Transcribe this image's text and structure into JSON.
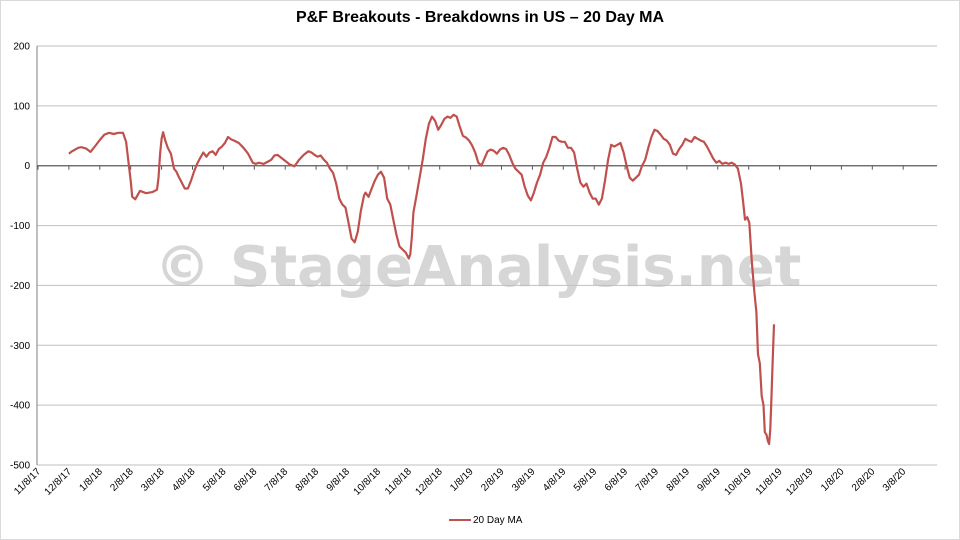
{
  "chart_data": {
    "type": "line",
    "title": "P&F Breakouts - Breakdowns in US – 20 Day MA",
    "watermark": "© StageAnalysis.net",
    "y_ticks": [
      200,
      100,
      0,
      -100,
      -200,
      -300,
      -400,
      -500
    ],
    "ylim": [
      -500,
      200
    ],
    "x_tick_labels": [
      "11/8/17",
      "12/8/17",
      "1/8/18",
      "2/8/18",
      "3/8/18",
      "4/8/18",
      "5/8/18",
      "6/8/18",
      "7/8/18",
      "8/8/18",
      "9/8/18",
      "10/8/18",
      "11/8/18",
      "12/8/18",
      "1/8/19",
      "2/8/19",
      "3/8/19",
      "4/8/19",
      "5/8/19",
      "6/8/19",
      "7/8/19",
      "8/8/19",
      "9/8/19",
      "10/8/19",
      "11/8/19",
      "12/8/19",
      "1/8/20",
      "2/8/20",
      "3/8/20"
    ],
    "grid": "horizontal",
    "legend_position": "bottom",
    "line_color": "#C0504D",
    "series": [
      {
        "name": "20 Day MA",
        "points": [
          [
            1.0,
            20
          ],
          [
            1.1,
            24
          ],
          [
            1.2,
            27
          ],
          [
            1.3,
            30
          ],
          [
            1.4,
            31
          ],
          [
            1.55,
            29
          ],
          [
            1.7,
            23
          ],
          [
            1.85,
            33
          ],
          [
            2.0,
            43
          ],
          [
            2.15,
            52
          ],
          [
            2.3,
            55
          ],
          [
            2.45,
            53
          ],
          [
            2.6,
            55
          ],
          [
            2.75,
            55
          ],
          [
            2.85,
            40
          ],
          [
            2.92,
            10
          ],
          [
            3.0,
            -25
          ],
          [
            3.05,
            -52
          ],
          [
            3.15,
            -56
          ],
          [
            3.3,
            -42
          ],
          [
            3.5,
            -46
          ],
          [
            3.7,
            -44
          ],
          [
            3.85,
            -40
          ],
          [
            3.9,
            -20
          ],
          [
            3.95,
            20
          ],
          [
            4.0,
            45
          ],
          [
            4.05,
            56
          ],
          [
            4.12,
            42
          ],
          [
            4.2,
            30
          ],
          [
            4.3,
            20
          ],
          [
            4.4,
            -5
          ],
          [
            4.48,
            -10
          ],
          [
            4.55,
            -18
          ],
          [
            4.65,
            -28
          ],
          [
            4.75,
            -38
          ],
          [
            4.85,
            -38
          ],
          [
            4.95,
            -25
          ],
          [
            5.05,
            -10
          ],
          [
            5.15,
            3
          ],
          [
            5.25,
            13
          ],
          [
            5.35,
            22
          ],
          [
            5.45,
            15
          ],
          [
            5.55,
            22
          ],
          [
            5.65,
            24
          ],
          [
            5.75,
            18
          ],
          [
            5.85,
            28
          ],
          [
            5.95,
            32
          ],
          [
            6.05,
            38
          ],
          [
            6.15,
            48
          ],
          [
            6.25,
            44
          ],
          [
            6.35,
            42
          ],
          [
            6.5,
            38
          ],
          [
            6.65,
            30
          ],
          [
            6.8,
            20
          ],
          [
            6.95,
            5
          ],
          [
            7.05,
            3
          ],
          [
            7.15,
            5
          ],
          [
            7.3,
            3
          ],
          [
            7.45,
            7
          ],
          [
            7.55,
            10
          ],
          [
            7.65,
            17
          ],
          [
            7.75,
            18
          ],
          [
            7.85,
            14
          ],
          [
            8.0,
            8
          ],
          [
            8.15,
            2
          ],
          [
            8.3,
            -1
          ],
          [
            8.45,
            10
          ],
          [
            8.6,
            18
          ],
          [
            8.75,
            24
          ],
          [
            8.85,
            22
          ],
          [
            8.95,
            18
          ],
          [
            9.05,
            15
          ],
          [
            9.15,
            17
          ],
          [
            9.25,
            10
          ],
          [
            9.35,
            5
          ],
          [
            9.45,
            -5
          ],
          [
            9.55,
            -12
          ],
          [
            9.65,
            -30
          ],
          [
            9.75,
            -55
          ],
          [
            9.85,
            -65
          ],
          [
            9.95,
            -70
          ],
          [
            10.05,
            -95
          ],
          [
            10.15,
            -122
          ],
          [
            10.25,
            -128
          ],
          [
            10.35,
            -110
          ],
          [
            10.45,
            -75
          ],
          [
            10.55,
            -50
          ],
          [
            10.6,
            -45
          ],
          [
            10.7,
            -52
          ],
          [
            10.8,
            -38
          ],
          [
            10.9,
            -25
          ],
          [
            11.0,
            -15
          ],
          [
            11.1,
            -10
          ],
          [
            11.2,
            -20
          ],
          [
            11.3,
            -55
          ],
          [
            11.4,
            -65
          ],
          [
            11.5,
            -90
          ],
          [
            11.6,
            -115
          ],
          [
            11.7,
            -135
          ],
          [
            11.8,
            -140
          ],
          [
            11.9,
            -145
          ],
          [
            12.0,
            -155
          ],
          [
            12.05,
            -148
          ],
          [
            12.1,
            -118
          ],
          [
            12.15,
            -78
          ],
          [
            12.25,
            -50
          ],
          [
            12.35,
            -20
          ],
          [
            12.45,
            10
          ],
          [
            12.55,
            45
          ],
          [
            12.65,
            70
          ],
          [
            12.75,
            82
          ],
          [
            12.85,
            75
          ],
          [
            12.95,
            60
          ],
          [
            13.05,
            68
          ],
          [
            13.15,
            78
          ],
          [
            13.25,
            82
          ],
          [
            13.35,
            80
          ],
          [
            13.45,
            85
          ],
          [
            13.55,
            82
          ],
          [
            13.65,
            65
          ],
          [
            13.75,
            50
          ],
          [
            13.85,
            47
          ],
          [
            13.95,
            42
          ],
          [
            14.05,
            34
          ],
          [
            14.15,
            22
          ],
          [
            14.25,
            5
          ],
          [
            14.35,
            0
          ],
          [
            14.45,
            12
          ],
          [
            14.55,
            24
          ],
          [
            14.65,
            27
          ],
          [
            14.75,
            25
          ],
          [
            14.85,
            20
          ],
          [
            14.95,
            27
          ],
          [
            15.05,
            30
          ],
          [
            15.15,
            28
          ],
          [
            15.25,
            18
          ],
          [
            15.35,
            5
          ],
          [
            15.45,
            -5
          ],
          [
            15.55,
            -10
          ],
          [
            15.65,
            -15
          ],
          [
            15.75,
            -35
          ],
          [
            15.85,
            -50
          ],
          [
            15.95,
            -58
          ],
          [
            16.05,
            -45
          ],
          [
            16.15,
            -28
          ],
          [
            16.25,
            -15
          ],
          [
            16.35,
            5
          ],
          [
            16.45,
            15
          ],
          [
            16.55,
            30
          ],
          [
            16.65,
            48
          ],
          [
            16.75,
            48
          ],
          [
            16.85,
            42
          ],
          [
            16.95,
            40
          ],
          [
            17.05,
            40
          ],
          [
            17.15,
            30
          ],
          [
            17.25,
            30
          ],
          [
            17.35,
            22
          ],
          [
            17.45,
            -5
          ],
          [
            17.55,
            -28
          ],
          [
            17.65,
            -35
          ],
          [
            17.75,
            -30
          ],
          [
            17.85,
            -45
          ],
          [
            17.95,
            -55
          ],
          [
            18.05,
            -55
          ],
          [
            18.15,
            -65
          ],
          [
            18.25,
            -55
          ],
          [
            18.35,
            -25
          ],
          [
            18.45,
            10
          ],
          [
            18.55,
            35
          ],
          [
            18.65,
            32
          ],
          [
            18.75,
            35
          ],
          [
            18.85,
            38
          ],
          [
            18.95,
            22
          ],
          [
            19.05,
            0
          ],
          [
            19.15,
            -20
          ],
          [
            19.25,
            -25
          ],
          [
            19.35,
            -20
          ],
          [
            19.45,
            -15
          ],
          [
            19.55,
            0
          ],
          [
            19.65,
            10
          ],
          [
            19.75,
            30
          ],
          [
            19.85,
            48
          ],
          [
            19.95,
            60
          ],
          [
            20.05,
            58
          ],
          [
            20.15,
            52
          ],
          [
            20.25,
            45
          ],
          [
            20.35,
            42
          ],
          [
            20.45,
            35
          ],
          [
            20.55,
            20
          ],
          [
            20.65,
            18
          ],
          [
            20.75,
            28
          ],
          [
            20.85,
            35
          ],
          [
            20.95,
            45
          ],
          [
            21.05,
            42
          ],
          [
            21.15,
            40
          ],
          [
            21.25,
            48
          ],
          [
            21.35,
            45
          ],
          [
            21.45,
            42
          ],
          [
            21.55,
            40
          ],
          [
            21.65,
            32
          ],
          [
            21.75,
            22
          ],
          [
            21.85,
            12
          ],
          [
            21.95,
            5
          ],
          [
            22.05,
            8
          ],
          [
            22.15,
            3
          ],
          [
            22.25,
            5
          ],
          [
            22.35,
            3
          ],
          [
            22.45,
            5
          ],
          [
            22.55,
            2
          ],
          [
            22.65,
            -5
          ],
          [
            22.75,
            -30
          ],
          [
            22.82,
            -60
          ],
          [
            22.88,
            -90
          ],
          [
            22.95,
            -86
          ],
          [
            23.02,
            -95
          ],
          [
            23.1,
            -160
          ],
          [
            23.18,
            -210
          ],
          [
            23.25,
            -245
          ],
          [
            23.3,
            -315
          ],
          [
            23.36,
            -330
          ],
          [
            23.42,
            -385
          ],
          [
            23.48,
            -400
          ],
          [
            23.52,
            -445
          ],
          [
            23.58,
            -450
          ],
          [
            23.62,
            -460
          ],
          [
            23.66,
            -465
          ],
          [
            23.7,
            -440
          ],
          [
            23.74,
            -380
          ],
          [
            23.78,
            -320
          ],
          [
            23.82,
            -265
          ]
        ]
      }
    ]
  }
}
